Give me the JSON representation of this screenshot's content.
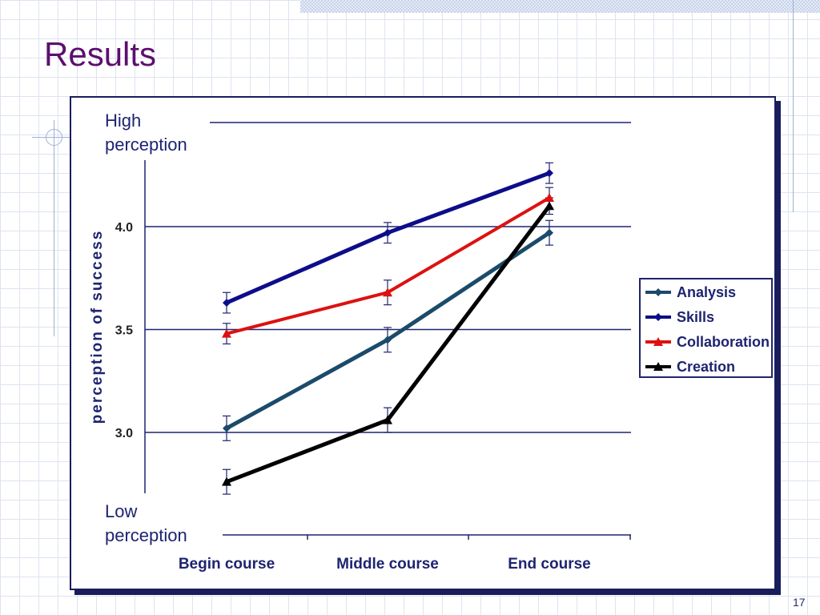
{
  "slide": {
    "title": "Results",
    "page_number": "17"
  },
  "chart_data": {
    "type": "line",
    "categories": [
      "Begin course",
      "Middle course",
      "End course"
    ],
    "ylabel": "perception of success",
    "yticks": [
      "3.0",
      "3.5",
      "4.0"
    ],
    "ylim": [
      2.6,
      4.4
    ],
    "grid": true,
    "legend_position": "right",
    "annotations": {
      "high": [
        "High",
        "perception"
      ],
      "low": [
        "Low",
        "perception"
      ]
    },
    "series": [
      {
        "name": "Analysis",
        "values": [
          3.02,
          3.45,
          3.97
        ],
        "errors": [
          0.06,
          0.06,
          0.06
        ],
        "color": "#1b4a6b",
        "marker": "diamond",
        "width": 5
      },
      {
        "name": "Skills",
        "values": [
          3.63,
          3.97,
          4.26
        ],
        "errors": [
          0.05,
          0.05,
          0.05
        ],
        "color": "#0d0d8a",
        "marker": "diamond",
        "width": 5
      },
      {
        "name": "Collaboration",
        "values": [
          3.48,
          3.68,
          4.14
        ],
        "errors": [
          0.05,
          0.06,
          0.05
        ],
        "color": "#dd1111",
        "marker": "triangle",
        "width": 4
      },
      {
        "name": "Creation",
        "values": [
          2.76,
          3.06,
          4.1
        ],
        "errors": [
          0.06,
          0.06,
          0.04
        ],
        "color": "#000000",
        "marker": "triangle",
        "width": 5
      }
    ]
  }
}
